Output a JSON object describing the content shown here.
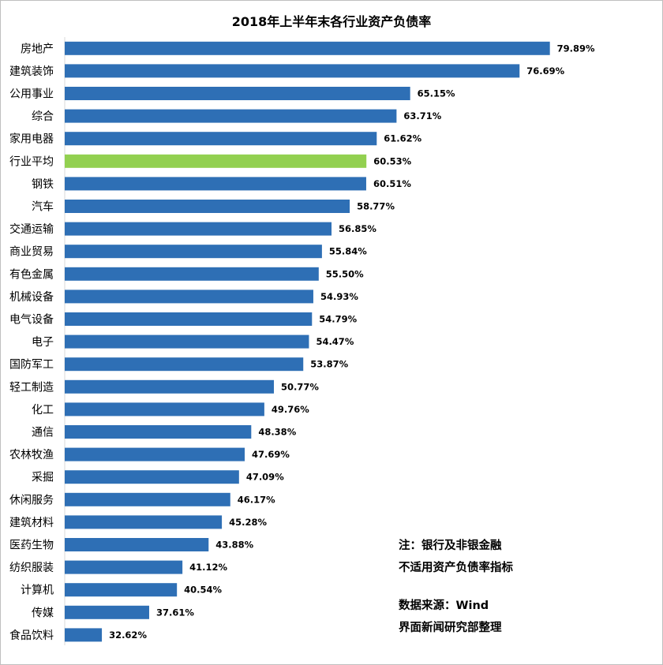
{
  "chart_data": {
    "type": "bar",
    "orientation": "horizontal",
    "title": "2018年上半年末各行业资产负债率",
    "categories": [
      "房地产",
      "建筑装饰",
      "公用事业",
      "综合",
      "家用电器",
      "行业平均",
      "钢铁",
      "汽车",
      "交通运输",
      "商业贸易",
      "有色金属",
      "机械设备",
      "电气设备",
      "电子",
      "国防军工",
      "轻工制造",
      "化工",
      "通信",
      "农林牧渔",
      "采掘",
      "休闲服务",
      "建筑材料",
      "医药生物",
      "纺织服装",
      "计算机",
      "传媒",
      "食品饮料"
    ],
    "values": [
      79.89,
      76.69,
      65.15,
      63.71,
      61.62,
      60.53,
      60.51,
      58.77,
      56.85,
      55.84,
      55.5,
      54.93,
      54.79,
      54.47,
      53.87,
      50.77,
      49.76,
      48.38,
      47.69,
      47.09,
      46.17,
      45.28,
      43.88,
      41.12,
      40.54,
      37.61,
      32.62
    ],
    "value_labels": [
      "79.89%",
      "76.69%",
      "65.15%",
      "63.71%",
      "61.62%",
      "60.53%",
      "60.51%",
      "58.77%",
      "56.85%",
      "55.84%",
      "55.50%",
      "54.93%",
      "54.79%",
      "54.47%",
      "53.87%",
      "50.77%",
      "49.76%",
      "48.38%",
      "47.69%",
      "47.09%",
      "46.17%",
      "45.28%",
      "43.88%",
      "41.12%",
      "40.54%",
      "37.61%",
      "32.62%"
    ],
    "highlight_category": "行业平均",
    "xlim": [
      28.7,
      80
    ],
    "grid": false,
    "legend": "none",
    "colors": {
      "bar": "#2e6fb5",
      "highlight": "#92d050"
    }
  },
  "notes": {
    "line1": "注：银行及非银金融",
    "line2": "不适用资产负债率指标",
    "line3": "数据来源：Wind",
    "line4": "界面新闻研究部整理"
  }
}
